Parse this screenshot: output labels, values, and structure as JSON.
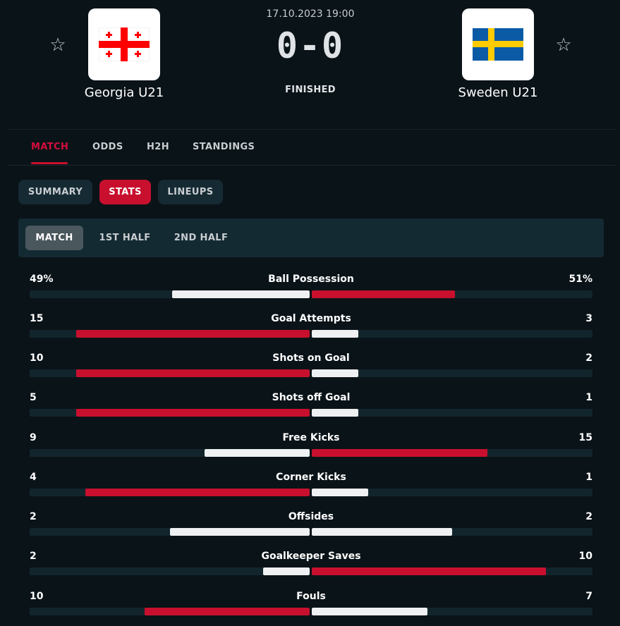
{
  "header": {
    "date": "17.10.2023 19:00",
    "score": "0-0",
    "status": "FINISHED",
    "home": {
      "name": "Georgia U21",
      "flag": "georgia-flag",
      "favorite": false
    },
    "away": {
      "name": "Sweden U21",
      "flag": "sweden-flag",
      "favorite": false
    }
  },
  "main_tabs": [
    {
      "label": "MATCH",
      "active": true
    },
    {
      "label": "ODDS",
      "active": false
    },
    {
      "label": "H2H",
      "active": false
    },
    {
      "label": "STANDINGS",
      "active": false
    }
  ],
  "sub_tabs": [
    {
      "label": "SUMMARY",
      "active": false
    },
    {
      "label": "STATS",
      "active": true
    },
    {
      "label": "LINEUPS",
      "active": false
    }
  ],
  "period_tabs": [
    {
      "label": "MATCH",
      "active": true
    },
    {
      "label": "1ST HALF",
      "active": false
    },
    {
      "label": "2ND HALF",
      "active": false
    }
  ],
  "colors": {
    "accent": "#c8102e",
    "background": "#0a1318",
    "panel": "#142a33",
    "track": "#12252d",
    "neutral_bar": "#eef0f1"
  },
  "stats": [
    {
      "category": "Ball Possession",
      "home": "49%",
      "away": "51%",
      "home_value": 49,
      "away_value": 51
    },
    {
      "category": "Goal Attempts",
      "home": "15",
      "away": "3",
      "home_value": 15,
      "away_value": 3
    },
    {
      "category": "Shots on Goal",
      "home": "10",
      "away": "2",
      "home_value": 10,
      "away_value": 2
    },
    {
      "category": "Shots off Goal",
      "home": "5",
      "away": "1",
      "home_value": 5,
      "away_value": 1
    },
    {
      "category": "Free Kicks",
      "home": "9",
      "away": "15",
      "home_value": 9,
      "away_value": 15
    },
    {
      "category": "Corner Kicks",
      "home": "4",
      "away": "1",
      "home_value": 4,
      "away_value": 1
    },
    {
      "category": "Offsides",
      "home": "2",
      "away": "2",
      "home_value": 2,
      "away_value": 2
    },
    {
      "category": "Goalkeeper Saves",
      "home": "2",
      "away": "10",
      "home_value": 2,
      "away_value": 10
    },
    {
      "category": "Fouls",
      "home": "10",
      "away": "7",
      "home_value": 10,
      "away_value": 7
    }
  ]
}
